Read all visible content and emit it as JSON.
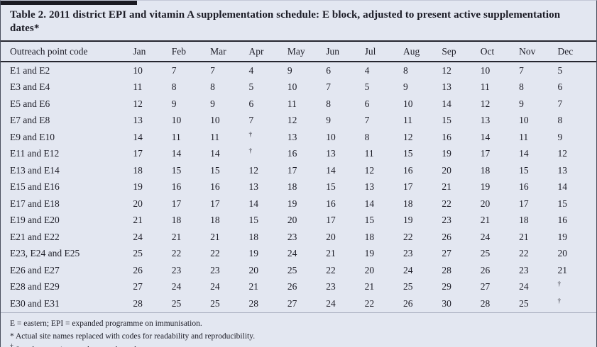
{
  "title": "Table 2. 2011 district EPI and vitamin A supplementation schedule: E block, adjusted to present active supplementation dates*",
  "dagger_symbol": "†",
  "columns": [
    "Outreach point code",
    "Jan",
    "Feb",
    "Mar",
    "Apr",
    "May",
    "Jun",
    "Jul",
    "Aug",
    "Sep",
    "Oct",
    "Nov",
    "Dec"
  ],
  "rows": [
    {
      "label": "E1 and E2",
      "values": [
        "10",
        "7",
        "7",
        "4",
        "9",
        "6",
        "4",
        "8",
        "12",
        "10",
        "7",
        "5"
      ]
    },
    {
      "label": "E3 and E4",
      "values": [
        "11",
        "8",
        "8",
        "5",
        "10",
        "7",
        "5",
        "9",
        "13",
        "11",
        "8",
        "6"
      ]
    },
    {
      "label": "E5 and E6",
      "values": [
        "12",
        "9",
        "9",
        "6",
        "11",
        "8",
        "6",
        "10",
        "14",
        "12",
        "9",
        "7"
      ]
    },
    {
      "label": "E7 and E8",
      "values": [
        "13",
        "10",
        "10",
        "7",
        "12",
        "9",
        "7",
        "11",
        "15",
        "13",
        "10",
        "8"
      ]
    },
    {
      "label": "E9 and E10",
      "values": [
        "14",
        "11",
        "11",
        "†",
        "13",
        "10",
        "8",
        "12",
        "16",
        "14",
        "11",
        "9"
      ]
    },
    {
      "label": "E11 and E12",
      "values": [
        "17",
        "14",
        "14",
        "†",
        "16",
        "13",
        "11",
        "15",
        "19",
        "17",
        "14",
        "12"
      ]
    },
    {
      "label": "E13 and E14",
      "values": [
        "18",
        "15",
        "15",
        "12",
        "17",
        "14",
        "12",
        "16",
        "20",
        "18",
        "15",
        "13"
      ]
    },
    {
      "label": "E15 and E16",
      "values": [
        "19",
        "16",
        "16",
        "13",
        "18",
        "15",
        "13",
        "17",
        "21",
        "19",
        "16",
        "14"
      ]
    },
    {
      "label": "E17 and E18",
      "values": [
        "20",
        "17",
        "17",
        "14",
        "19",
        "16",
        "14",
        "18",
        "22",
        "20",
        "17",
        "15"
      ]
    },
    {
      "label": "E19 and E20",
      "values": [
        "21",
        "18",
        "18",
        "15",
        "20",
        "17",
        "15",
        "19",
        "23",
        "21",
        "18",
        "16"
      ]
    },
    {
      "label": "E21 and E22",
      "values": [
        "24",
        "21",
        "21",
        "18",
        "23",
        "20",
        "18",
        "22",
        "26",
        "24",
        "21",
        "19"
      ]
    },
    {
      "label": "E23,  E24 and E25",
      "values": [
        "25",
        "22",
        "22",
        "19",
        "24",
        "21",
        "19",
        "23",
        "27",
        "25",
        "22",
        "20"
      ]
    },
    {
      "label": "E26 and E27",
      "values": [
        "26",
        "23",
        "23",
        "20",
        "25",
        "22",
        "20",
        "24",
        "28",
        "26",
        "23",
        "21"
      ]
    },
    {
      "label": "E28 and E29",
      "values": [
        "27",
        "24",
        "24",
        "21",
        "26",
        "23",
        "21",
        "25",
        "29",
        "27",
        "24",
        "†"
      ]
    },
    {
      "label": "E30 and E31",
      "values": [
        "28",
        "25",
        "25",
        "28",
        "27",
        "24",
        "22",
        "26",
        "30",
        "28",
        "25",
        "†"
      ]
    }
  ],
  "footnotes": [
    {
      "marker": "",
      "text": "E = eastern; EPI = expanded programme on immunisation."
    },
    {
      "marker": "",
      "text": "* Actual site names replaced with codes for readability and reproducibility."
    },
    {
      "marker": "†",
      "text": "Supplementation not done on these dates."
    }
  ],
  "colors": {
    "background": "#e3e7f1",
    "text": "#1c1c26",
    "rule": "#26262f",
    "top_bar": "#1a1a22"
  }
}
